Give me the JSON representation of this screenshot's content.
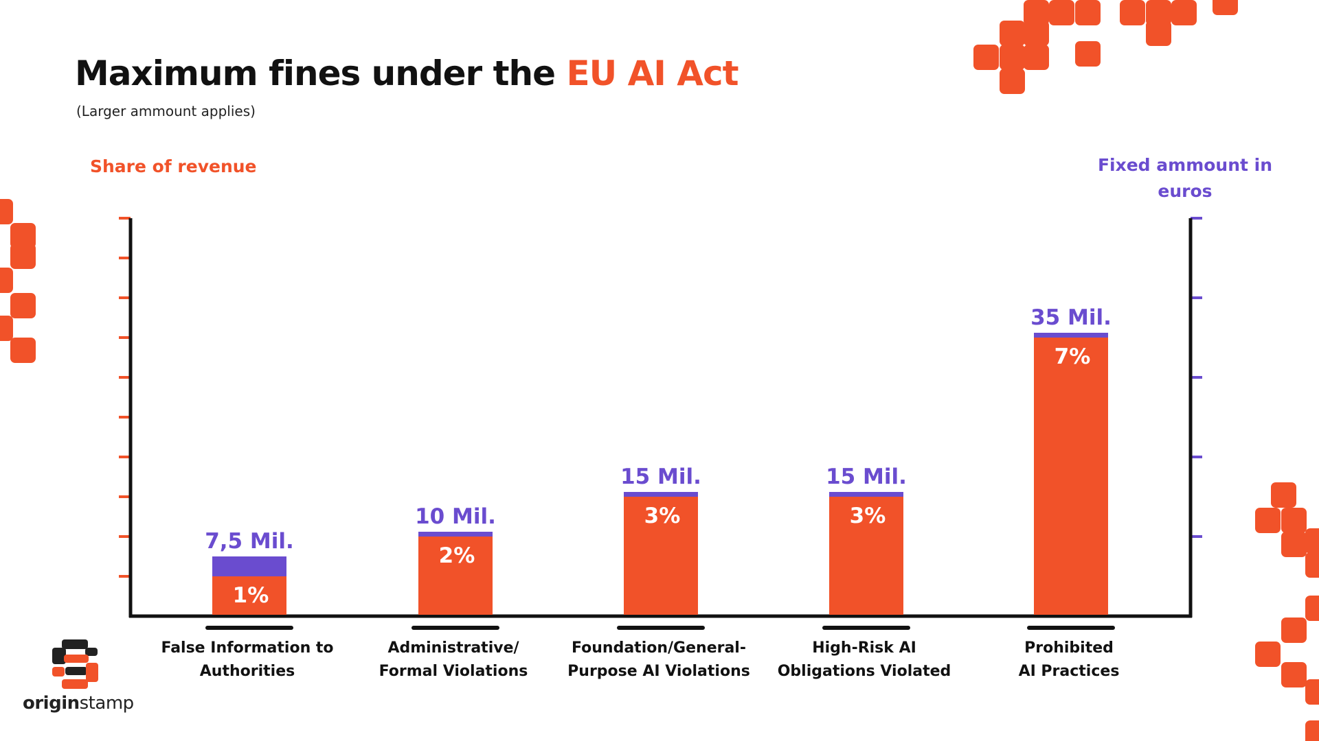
{
  "header": {
    "title_prefix": "Maximum fines under the ",
    "title_highlight": "EU AI Act",
    "subtitle": "(Larger ammount applies)"
  },
  "colors": {
    "orange": "#F15229",
    "purple": "#6A4CCF",
    "axis": "#111111"
  },
  "logo": {
    "text_bold": "origin",
    "text_regular": "stamp"
  },
  "chart_data": {
    "type": "bar",
    "stacked": true,
    "title": "Maximum fines under the EU AI Act",
    "subtitle": "(Larger ammount applies)",
    "ylabel_left": "Share of revenue",
    "ylabel_right": "Fixed ammount in euros",
    "ylim_left": [
      0,
      10
    ],
    "ylim_right": [
      0,
      50
    ],
    "grid": false,
    "categories": [
      [
        "False Information to",
        "Authorities"
      ],
      [
        "Administrative/",
        "Formal Violations"
      ],
      [
        "Foundation/General-",
        "Purpose AI Violations"
      ],
      [
        "High-Risk AI",
        "Obligations Violated"
      ],
      [
        "Prohibited",
        "AI Practices"
      ]
    ],
    "series": [
      {
        "name": "Share of revenue",
        "unit": "%",
        "values": [
          1,
          2,
          3,
          3,
          7
        ],
        "labels": [
          "1%",
          "2%",
          "3%",
          "3%",
          "7%"
        ]
      },
      {
        "name": "Fixed ammount in euros",
        "unit": "Mil. EUR",
        "values": [
          7.5,
          10,
          15,
          15,
          35
        ],
        "labels": [
          "7,5 Mil.",
          "10 Mil.",
          "15 Mil.",
          "15 Mil.",
          "35 Mil."
        ]
      }
    ]
  }
}
